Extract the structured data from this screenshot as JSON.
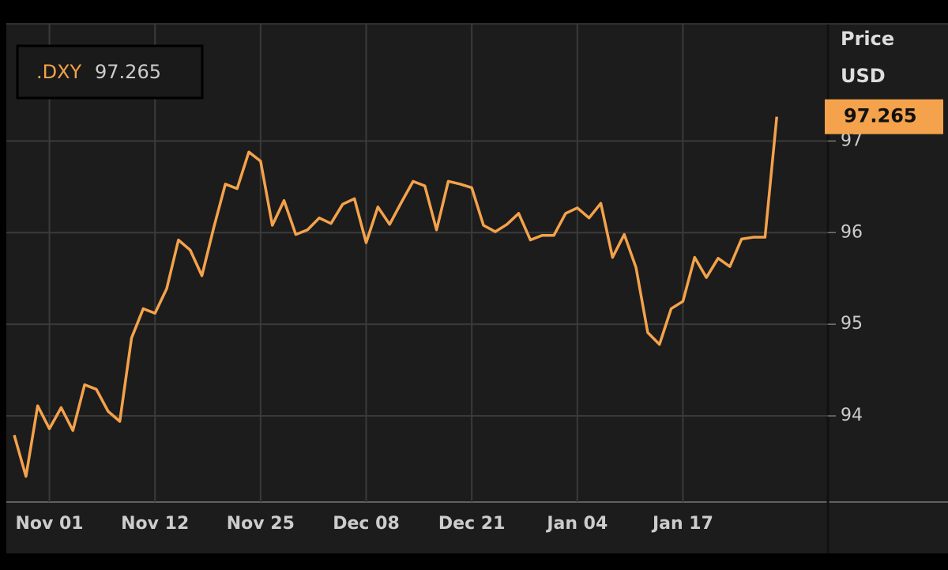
{
  "chart_data": {
    "type": "line",
    "y_label": "Price",
    "y_unit": "USD",
    "categories": [
      null,
      null,
      null,
      "Nov 01",
      null,
      null,
      null,
      null,
      null,
      null,
      null,
      null,
      "Nov 12",
      null,
      null,
      null,
      null,
      null,
      null,
      null,
      null,
      "Nov 25",
      null,
      null,
      null,
      null,
      null,
      null,
      null,
      null,
      "Dec 08",
      null,
      null,
      null,
      null,
      null,
      null,
      null,
      null,
      "Dec 21",
      null,
      null,
      null,
      null,
      null,
      null,
      null,
      null,
      "Jan 04",
      null,
      null,
      null,
      null,
      null,
      null,
      null,
      null,
      "Jan 17",
      null,
      null,
      null,
      null,
      null,
      null,
      null,
      null
    ],
    "series": [
      {
        "name": ".DXY",
        "color": "#f4a24b",
        "values": [
          93.79,
          93.34,
          94.11,
          93.86,
          94.09,
          93.84,
          94.34,
          94.29,
          94.05,
          93.94,
          94.85,
          95.17,
          95.12,
          95.39,
          95.92,
          95.81,
          95.53,
          96.05,
          96.53,
          96.48,
          96.88,
          96.78,
          96.08,
          96.35,
          95.98,
          96.03,
          96.16,
          96.1,
          96.31,
          96.37,
          95.89,
          96.28,
          96.09,
          96.33,
          96.56,
          96.51,
          96.03,
          96.56,
          96.53,
          96.49,
          96.08,
          96.01,
          96.09,
          96.21,
          95.92,
          95.97,
          95.97,
          96.21,
          96.27,
          96.16,
          96.32,
          95.73,
          95.98,
          95.62,
          94.91,
          94.78,
          95.17,
          95.25,
          95.73,
          95.51,
          95.72,
          95.63,
          95.93,
          95.95,
          95.95,
          97.265
        ]
      }
    ],
    "ylim": [
      93.06,
      98.28
    ],
    "yticks": [
      94,
      95,
      96,
      97
    ],
    "grid": true
  }
}
